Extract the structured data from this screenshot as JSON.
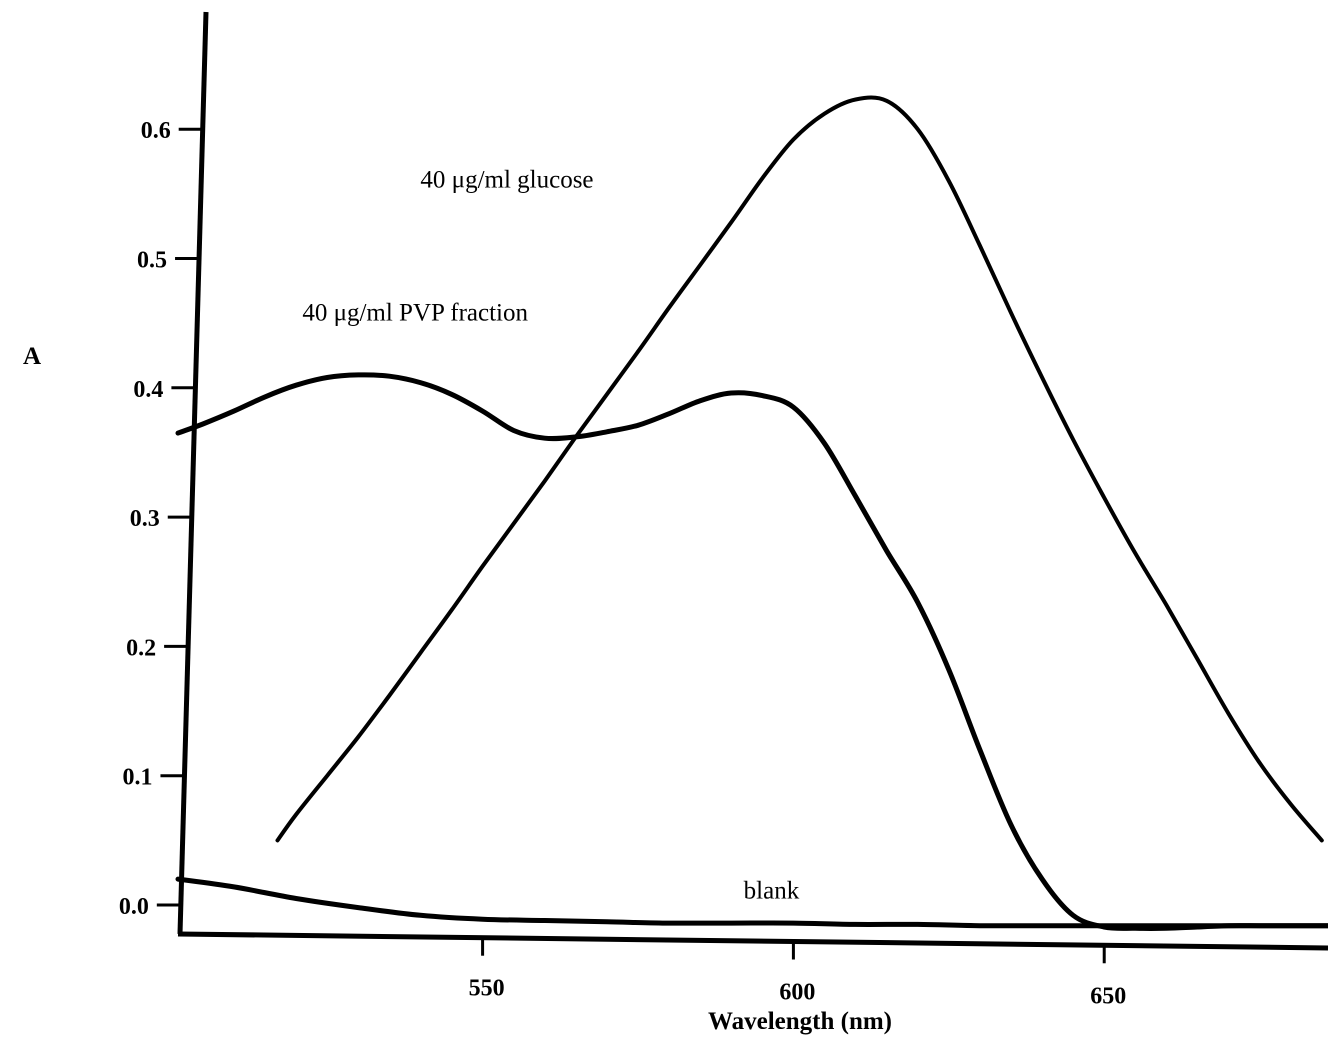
{
  "chart_data": {
    "type": "line",
    "title": "",
    "xlabel": "Wavelength (nm)",
    "ylabel": "A",
    "xlim": [
      501,
      686
    ],
    "ylim": [
      -0.02,
      0.7
    ],
    "x_ticks": [
      550,
      600,
      650
    ],
    "x_tick_labels": [
      "550",
      "600",
      "650"
    ],
    "y_ticks": [
      0.0,
      0.1,
      0.2,
      0.3,
      0.4,
      0.5,
      0.6
    ],
    "y_tick_labels": [
      "0.0",
      "0.1",
      "0.2",
      "0.3",
      "0.4",
      "0.5",
      "0.6"
    ],
    "grid": false,
    "legend": "none",
    "series": [
      {
        "name": "40 μg/ml PVP fraction",
        "x": [
          501,
          505,
          510,
          515,
          520,
          525,
          530,
          535,
          540,
          545,
          550,
          555,
          560,
          565,
          570,
          575,
          580,
          585,
          590,
          595,
          600,
          605,
          610,
          615,
          620,
          625,
          630,
          635,
          640,
          645,
          650,
          655,
          660,
          665,
          670,
          675,
          680,
          686
        ],
        "y": [
          0.365,
          0.372,
          0.382,
          0.393,
          0.402,
          0.408,
          0.41,
          0.409,
          0.404,
          0.395,
          0.382,
          0.367,
          0.361,
          0.362,
          0.366,
          0.371,
          0.38,
          0.39,
          0.396,
          0.394,
          0.385,
          0.357,
          0.316,
          0.274,
          0.234,
          0.182,
          0.12,
          0.062,
          0.02,
          -0.008,
          -0.017,
          -0.018,
          -0.018,
          -0.017,
          -0.016,
          -0.016,
          -0.016,
          -0.016
        ]
      },
      {
        "name": "40 μg/ml glucose",
        "x": [
          517,
          520,
          525,
          530,
          535,
          540,
          545,
          550,
          555,
          560,
          565,
          570,
          575,
          580,
          585,
          590,
          595,
          600,
          605,
          610,
          615,
          620,
          625,
          630,
          635,
          640,
          645,
          650,
          655,
          660,
          665,
          670,
          675,
          680,
          685
        ],
        "y": [
          0.05,
          0.07,
          0.1,
          0.13,
          0.162,
          0.195,
          0.228,
          0.262,
          0.295,
          0.328,
          0.362,
          0.395,
          0.428,
          0.462,
          0.495,
          0.528,
          0.562,
          0.592,
          0.612,
          0.623,
          0.622,
          0.6,
          0.56,
          0.51,
          0.458,
          0.408,
          0.36,
          0.315,
          0.272,
          0.232,
          0.19,
          0.148,
          0.11,
          0.078,
          0.05
        ]
      },
      {
        "name": "blank",
        "x": [
          501,
          510,
          520,
          530,
          540,
          550,
          560,
          570,
          580,
          590,
          600,
          610,
          620,
          630,
          640,
          650,
          660,
          670,
          680,
          686
        ],
        "y": [
          0.02,
          0.014,
          0.005,
          -0.002,
          -0.008,
          -0.011,
          -0.012,
          -0.013,
          -0.014,
          -0.014,
          -0.014,
          -0.015,
          -0.015,
          -0.016,
          -0.016,
          -0.016,
          -0.016,
          -0.016,
          -0.016,
          -0.016
        ]
      }
    ],
    "annotations": [
      {
        "text": "40 μg/ml glucose",
        "x": 540,
        "y": 0.555
      },
      {
        "text": "40 μg/ml PVP fraction",
        "x": 521,
        "y": 0.452
      },
      {
        "text": "blank",
        "x": 592,
        "y": 0.005
      }
    ]
  }
}
